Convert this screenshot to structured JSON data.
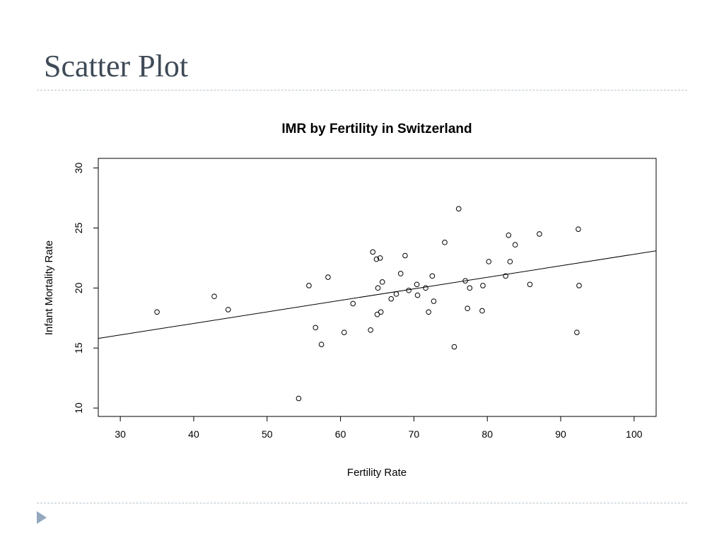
{
  "slide": {
    "title": "Scatter Plot"
  },
  "chart_data": {
    "type": "scatter",
    "title": "IMR by Fertility in Switzerland",
    "xlabel": "Fertility Rate",
    "ylabel": "Infant Mortality Rate",
    "xlim": [
      27,
      103
    ],
    "ylim": [
      9.3,
      30.8
    ],
    "xticks": [
      "30",
      "40",
      "50",
      "60",
      "70",
      "80",
      "90",
      "100"
    ],
    "yticks": [
      "10",
      "15",
      "20",
      "25",
      "30"
    ],
    "grid": false,
    "legend": "none",
    "points": [
      [
        35.0,
        18.0
      ],
      [
        42.8,
        19.3
      ],
      [
        44.7,
        18.2
      ],
      [
        54.3,
        10.8
      ],
      [
        55.7,
        20.2
      ],
      [
        56.6,
        16.7
      ],
      [
        57.4,
        15.3
      ],
      [
        58.3,
        20.9
      ],
      [
        60.5,
        16.3
      ],
      [
        61.7,
        18.7
      ],
      [
        64.1,
        16.5
      ],
      [
        64.4,
        23.0
      ],
      [
        64.9,
        22.4
      ],
      [
        65.0,
        17.8
      ],
      [
        65.1,
        20.0
      ],
      [
        65.4,
        22.5
      ],
      [
        65.5,
        18.0
      ],
      [
        65.7,
        20.5
      ],
      [
        66.9,
        19.1
      ],
      [
        67.6,
        19.5
      ],
      [
        68.2,
        21.2
      ],
      [
        68.8,
        22.7
      ],
      [
        69.3,
        19.8
      ],
      [
        70.4,
        20.3
      ],
      [
        70.5,
        19.4
      ],
      [
        71.6,
        20.0
      ],
      [
        72.0,
        18.0
      ],
      [
        72.5,
        21.0
      ],
      [
        72.7,
        18.9
      ],
      [
        74.2,
        23.8
      ],
      [
        75.5,
        15.1
      ],
      [
        76.1,
        26.6
      ],
      [
        77.0,
        20.6
      ],
      [
        77.3,
        18.3
      ],
      [
        77.6,
        20.0
      ],
      [
        79.3,
        18.1
      ],
      [
        79.4,
        20.2
      ],
      [
        80.2,
        22.2
      ],
      [
        82.5,
        21.0
      ],
      [
        82.9,
        24.4
      ],
      [
        83.1,
        22.2
      ],
      [
        83.8,
        23.6
      ],
      [
        85.8,
        20.3
      ],
      [
        87.1,
        24.5
      ],
      [
        92.2,
        16.3
      ],
      [
        92.4,
        24.9
      ],
      [
        92.5,
        20.2
      ]
    ],
    "regression_line": {
      "x": [
        27,
        103
      ],
      "y": [
        15.8,
        23.1
      ]
    },
    "colors": {
      "points": "#000000",
      "line": "#000000"
    }
  }
}
